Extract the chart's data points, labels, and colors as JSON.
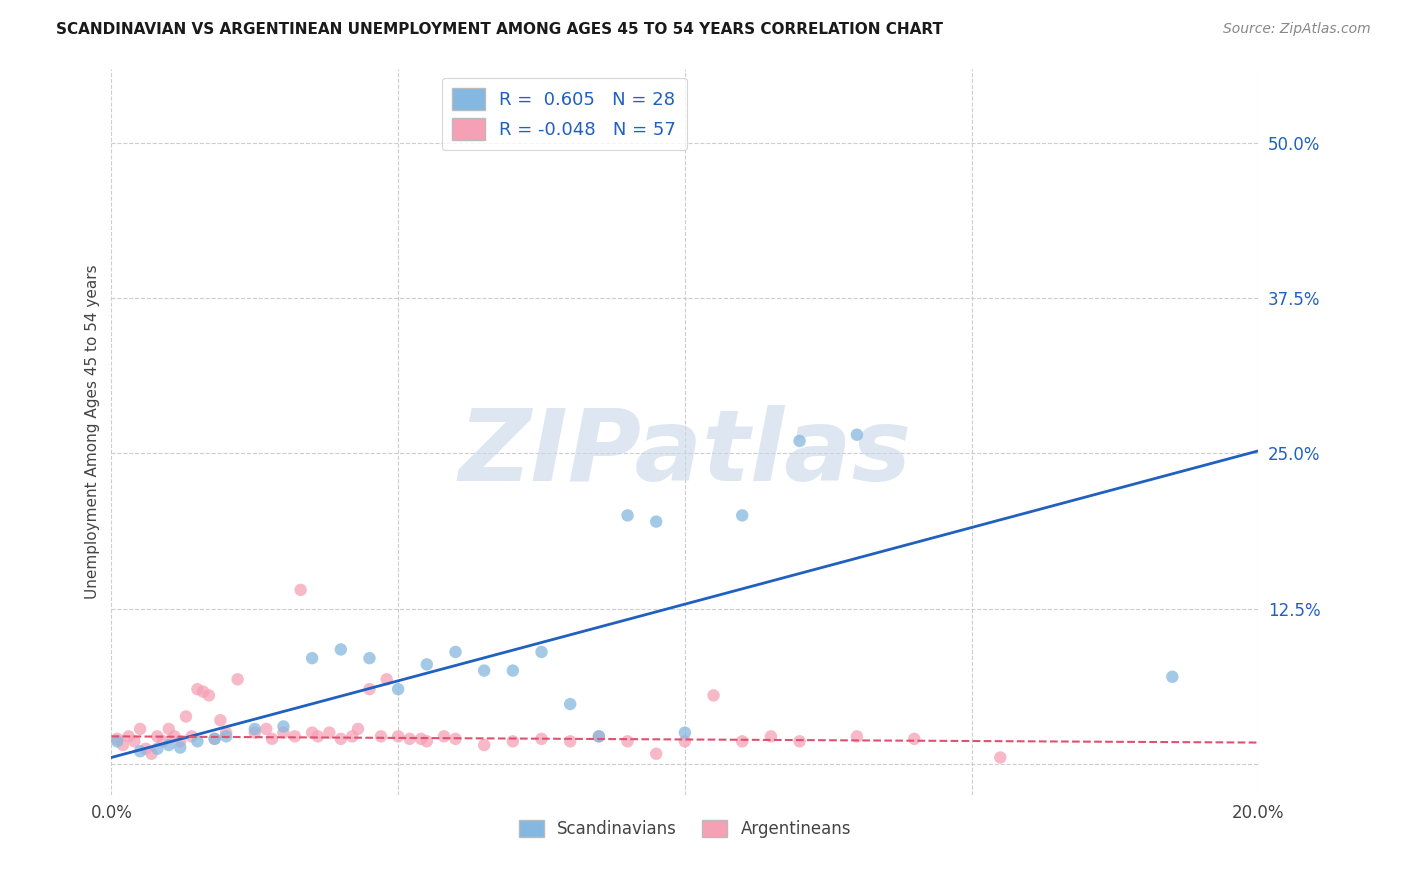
{
  "title": "SCANDINAVIAN VS ARGENTINEAN UNEMPLOYMENT AMONG AGES 45 TO 54 YEARS CORRELATION CHART",
  "source": "Source: ZipAtlas.com",
  "ylabel": "Unemployment Among Ages 45 to 54 years",
  "xlim": [
    0.0,
    0.2
  ],
  "ylim": [
    -0.025,
    0.56
  ],
  "yticks": [
    0.0,
    0.125,
    0.25,
    0.375,
    0.5
  ],
  "ytick_labels": [
    "",
    "12.5%",
    "25.0%",
    "37.5%",
    "50.0%"
  ],
  "xticks": [
    0.0,
    0.05,
    0.1,
    0.15,
    0.2
  ],
  "xtick_labels": [
    "0.0%",
    "",
    "",
    "",
    "20.0%"
  ],
  "scandinavian_R": 0.605,
  "scandinavian_N": 28,
  "argentinean_R": -0.048,
  "argentinean_N": 57,
  "scandinavian_color": "#85b8e0",
  "argentinean_color": "#f5a0b5",
  "trend_scand_color": "#2060c0",
  "trend_arg_color": "#e05070",
  "background_color": "#ffffff",
  "grid_color": "#c8c8c8",
  "scandinavian_points": [
    [
      0.001,
      0.018
    ],
    [
      0.005,
      0.01
    ],
    [
      0.008,
      0.012
    ],
    [
      0.01,
      0.015
    ],
    [
      0.012,
      0.013
    ],
    [
      0.015,
      0.018
    ],
    [
      0.018,
      0.02
    ],
    [
      0.02,
      0.022
    ],
    [
      0.025,
      0.028
    ],
    [
      0.03,
      0.03
    ],
    [
      0.035,
      0.085
    ],
    [
      0.04,
      0.092
    ],
    [
      0.045,
      0.085
    ],
    [
      0.05,
      0.06
    ],
    [
      0.055,
      0.08
    ],
    [
      0.06,
      0.09
    ],
    [
      0.065,
      0.075
    ],
    [
      0.07,
      0.075
    ],
    [
      0.075,
      0.09
    ],
    [
      0.08,
      0.048
    ],
    [
      0.085,
      0.022
    ],
    [
      0.09,
      0.2
    ],
    [
      0.095,
      0.195
    ],
    [
      0.1,
      0.025
    ],
    [
      0.11,
      0.2
    ],
    [
      0.12,
      0.26
    ],
    [
      0.13,
      0.265
    ],
    [
      0.185,
      0.07
    ]
  ],
  "argentinean_points": [
    [
      0.001,
      0.02
    ],
    [
      0.002,
      0.015
    ],
    [
      0.003,
      0.022
    ],
    [
      0.004,
      0.018
    ],
    [
      0.005,
      0.028
    ],
    [
      0.006,
      0.012
    ],
    [
      0.007,
      0.008
    ],
    [
      0.008,
      0.022
    ],
    [
      0.009,
      0.018
    ],
    [
      0.01,
      0.028
    ],
    [
      0.011,
      0.022
    ],
    [
      0.012,
      0.018
    ],
    [
      0.013,
      0.038
    ],
    [
      0.014,
      0.022
    ],
    [
      0.015,
      0.06
    ],
    [
      0.016,
      0.058
    ],
    [
      0.017,
      0.055
    ],
    [
      0.018,
      0.02
    ],
    [
      0.019,
      0.035
    ],
    [
      0.02,
      0.025
    ],
    [
      0.022,
      0.068
    ],
    [
      0.025,
      0.025
    ],
    [
      0.027,
      0.028
    ],
    [
      0.028,
      0.02
    ],
    [
      0.03,
      0.025
    ],
    [
      0.032,
      0.022
    ],
    [
      0.033,
      0.14
    ],
    [
      0.035,
      0.025
    ],
    [
      0.036,
      0.022
    ],
    [
      0.038,
      0.025
    ],
    [
      0.04,
      0.02
    ],
    [
      0.042,
      0.022
    ],
    [
      0.043,
      0.028
    ],
    [
      0.045,
      0.06
    ],
    [
      0.047,
      0.022
    ],
    [
      0.048,
      0.068
    ],
    [
      0.05,
      0.022
    ],
    [
      0.052,
      0.02
    ],
    [
      0.054,
      0.02
    ],
    [
      0.055,
      0.018
    ],
    [
      0.058,
      0.022
    ],
    [
      0.06,
      0.02
    ],
    [
      0.065,
      0.015
    ],
    [
      0.07,
      0.018
    ],
    [
      0.075,
      0.02
    ],
    [
      0.08,
      0.018
    ],
    [
      0.085,
      0.022
    ],
    [
      0.09,
      0.018
    ],
    [
      0.095,
      0.008
    ],
    [
      0.1,
      0.018
    ],
    [
      0.105,
      0.055
    ],
    [
      0.11,
      0.018
    ],
    [
      0.115,
      0.022
    ],
    [
      0.12,
      0.018
    ],
    [
      0.13,
      0.022
    ],
    [
      0.14,
      0.02
    ],
    [
      0.155,
      0.005
    ]
  ],
  "scand_trend_x": [
    0.0,
    0.2
  ],
  "scand_trend_y": [
    0.005,
    0.252
  ],
  "arg_trend_x": [
    0.0,
    0.2
  ],
  "arg_trend_y": [
    0.022,
    0.017
  ],
  "legend_scand_label": "R =  0.605   N = 28",
  "legend_arg_label": "R = -0.048   N = 57",
  "bottom_legend_scand": "Scandinavians",
  "bottom_legend_arg": "Argentineans",
  "watermark_text": "ZIPatlas",
  "watermark_color": "#c8d8e8",
  "marker_size": 80
}
